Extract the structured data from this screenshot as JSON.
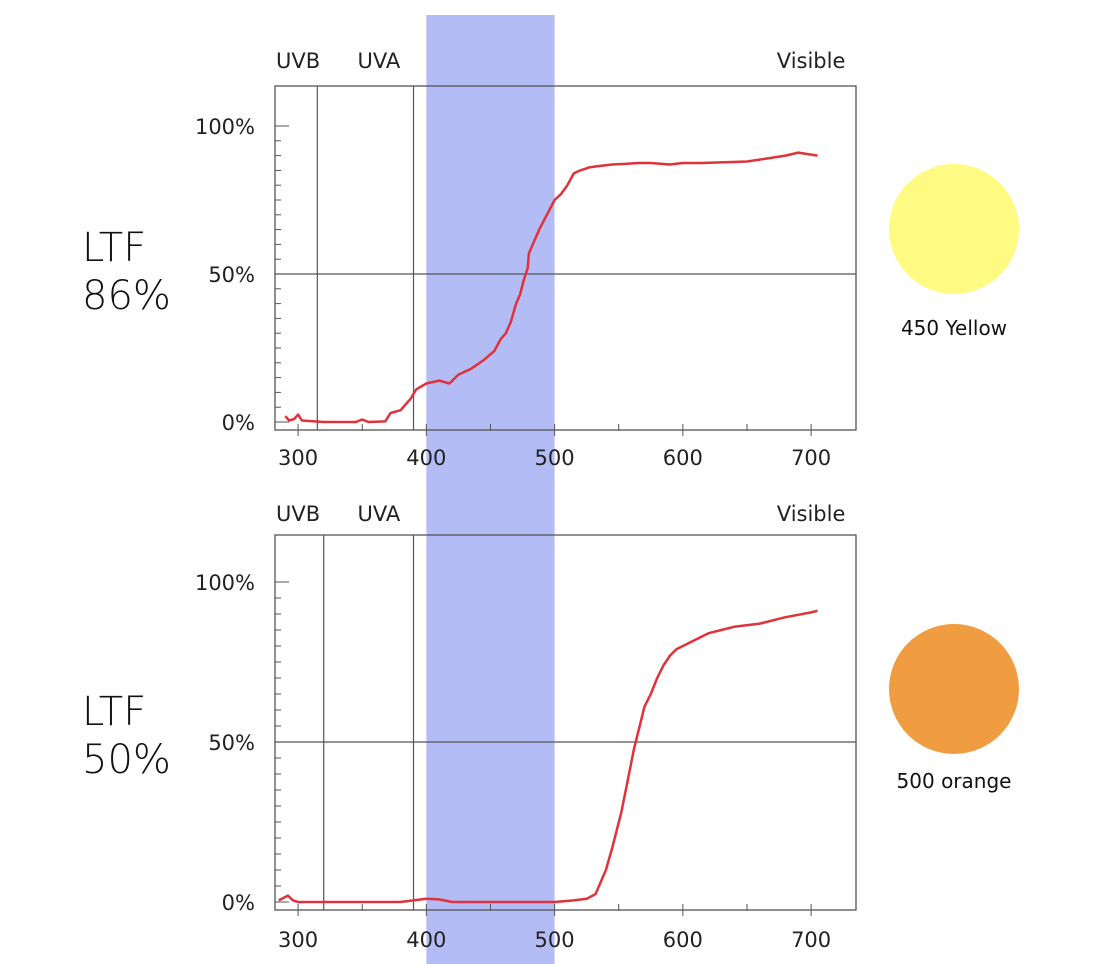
{
  "band_color": "#b0b8f5",
  "panels": [
    {
      "ltf": {
        "line1": "LTF",
        "line2": "86%"
      },
      "swatch": {
        "label": "450 Yellow",
        "color": "#fefa82"
      }
    },
    {
      "ltf": {
        "line1": "LTF",
        "line2": "50%"
      },
      "swatch": {
        "label": "500 orange",
        "color": "#f09d42"
      }
    }
  ],
  "chart_data": [
    {
      "type": "line",
      "region_labels": [
        {
          "text": "UVB",
          "x": 300
        },
        {
          "text": "UVA",
          "x": 363
        },
        {
          "text": "Visible",
          "x": 700
        }
      ],
      "region_boundaries": [
        315,
        390
      ],
      "highlight_band": [
        400,
        500
      ],
      "x_ticks": [
        300,
        400,
        500,
        600,
        700
      ],
      "x_minor_ticks": [
        350,
        450,
        550,
        650
      ],
      "y_ticks": [
        {
          "value": 0,
          "label": "0%"
        },
        {
          "value": 50,
          "label": "50%"
        },
        {
          "value": 100,
          "label": "100%"
        }
      ],
      "xlim": [
        282,
        735
      ],
      "ylim": [
        0,
        100
      ],
      "line_color": "#e0323a",
      "series": [
        {
          "x": [
            290,
            293,
            297,
            300,
            303,
            320,
            345,
            350,
            355,
            368,
            372,
            380,
            384,
            388,
            392,
            400,
            410,
            418,
            425,
            435,
            445,
            453,
            458,
            462,
            466,
            470,
            473,
            476,
            479,
            480,
            483,
            488,
            494,
            500,
            505,
            510,
            515,
            520,
            527,
            535,
            545,
            555,
            565,
            575,
            590,
            600,
            615,
            650,
            665,
            680,
            690,
            705
          ],
          "y": [
            2,
            0.5,
            1,
            2.5,
            0.5,
            0,
            0,
            0.8,
            0,
            0.2,
            3,
            4,
            6,
            8,
            11,
            13,
            14,
            13,
            16,
            18,
            21,
            24,
            28,
            30,
            34,
            40,
            43,
            48,
            52,
            57,
            60,
            65,
            70,
            75,
            77,
            80,
            84,
            85,
            86,
            86.5,
            87,
            87.2,
            87.5,
            87.5,
            87,
            87.5,
            87.5,
            88,
            89,
            90,
            91,
            90
          ]
        }
      ]
    },
    {
      "type": "line",
      "region_labels": [
        {
          "text": "UVB",
          "x": 300
        },
        {
          "text": "UVA",
          "x": 363
        },
        {
          "text": "Visible",
          "x": 700
        }
      ],
      "region_boundaries": [
        320,
        390
      ],
      "highlight_band": [
        400,
        500
      ],
      "x_ticks": [
        300,
        400,
        500,
        600,
        700
      ],
      "x_minor_ticks": [
        350,
        450,
        550,
        650
      ],
      "y_ticks": [
        {
          "value": 0,
          "label": "0%"
        },
        {
          "value": 50,
          "label": "50%"
        },
        {
          "value": 100,
          "label": "100%"
        }
      ],
      "xlim": [
        282,
        735
      ],
      "ylim": [
        0,
        100
      ],
      "line_color": "#e0323a",
      "series": [
        {
          "x": [
            285,
            292,
            296,
            300,
            320,
            350,
            380,
            400,
            410,
            420,
            460,
            500,
            515,
            525,
            532,
            540,
            545,
            552,
            558,
            562,
            567,
            570,
            575,
            580,
            585,
            590,
            595,
            600,
            610,
            620,
            630,
            640,
            660,
            680,
            700,
            705
          ],
          "y": [
            0.5,
            2,
            0.5,
            0,
            0,
            0,
            0,
            1,
            0.8,
            0,
            0,
            0,
            0.5,
            1,
            2.5,
            10,
            17,
            28,
            40,
            48,
            56,
            61,
            65,
            70,
            74,
            77,
            79,
            80,
            82,
            84,
            85,
            86,
            87,
            89,
            90.5,
            91
          ]
        }
      ]
    }
  ]
}
